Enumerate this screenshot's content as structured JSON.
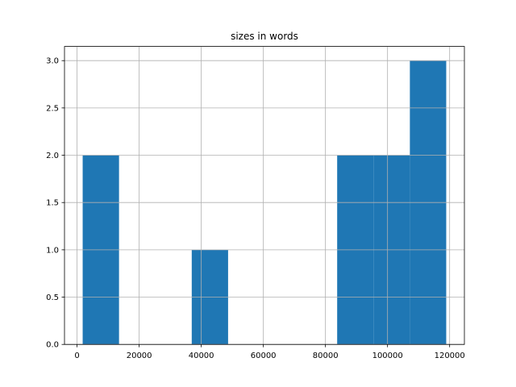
{
  "chart_data": {
    "type": "histogram",
    "title": "sizes in words",
    "bins": [
      1800,
      13510,
      25220,
      36930,
      48640,
      60350,
      72060,
      83770,
      95480,
      107190,
      118900
    ],
    "values": [
      2,
      0,
      0,
      1,
      0,
      0,
      0,
      2,
      2,
      3
    ],
    "color": "#1f77b4",
    "xlim": [
      -4055,
      124755
    ],
    "xticks": [
      0,
      20000,
      40000,
      60000,
      80000,
      100000,
      120000
    ],
    "ylim": [
      0,
      3.15
    ],
    "yticks": [
      {
        "value": 0,
        "label": "0.0"
      },
      0.5,
      {
        "value": 1,
        "label": "1.0"
      },
      1.5,
      {
        "value": 2,
        "label": "2.0"
      },
      2.5,
      {
        "value": 3,
        "label": "3.0"
      }
    ],
    "grid": true
  }
}
